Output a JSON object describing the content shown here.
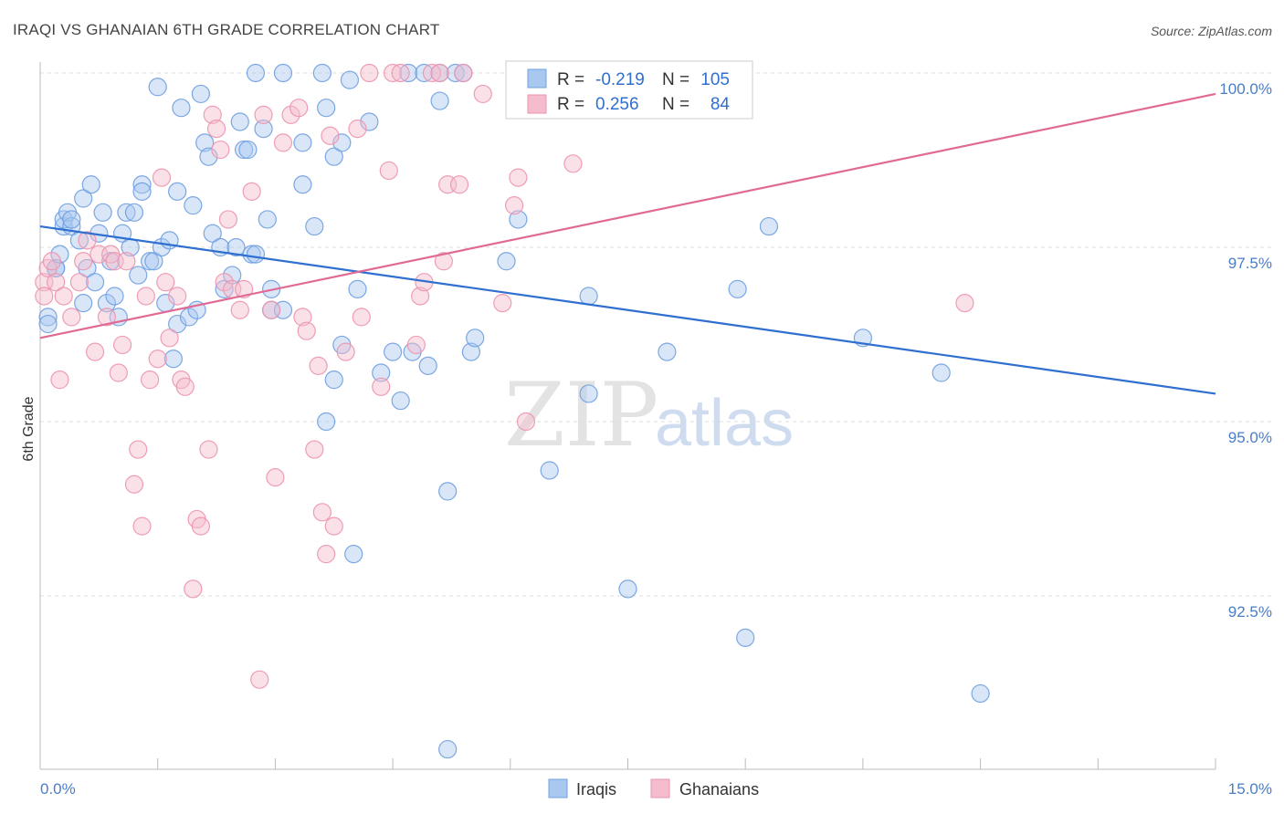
{
  "chart_data": {
    "type": "scatter",
    "title": "IRAQI VS GHANAIAN 6TH GRADE CORRELATION CHART",
    "source": "Source: ZipAtlas.com",
    "ylabel": "6th Grade",
    "xlabel": "",
    "xlim": [
      0,
      15
    ],
    "ylim": [
      90.3,
      100.2
    ],
    "x_tick_labels": [
      "0.0%",
      "15.0%"
    ],
    "y_ticks": [
      {
        "value": 100.0,
        "label": "100.0%"
      },
      {
        "value": 97.5,
        "label": "97.5%"
      },
      {
        "value": 95.0,
        "label": "95.0%"
      },
      {
        "value": 92.5,
        "label": "92.5%"
      }
    ],
    "grid": "horizontal dashed",
    "legend_position": "top-center",
    "legend": [
      {
        "r_label": "R =",
        "r_value": "-0.219",
        "n_label": "N =",
        "n_value": "105"
      },
      {
        "r_label": "R =",
        "r_value": "0.256",
        "n_label": "N =",
        "n_value": "84"
      }
    ],
    "series": [
      {
        "name": "Iraqis",
        "color": "#a9c8f0",
        "stroke": "#6f9fe0",
        "trend_color": "#2f6fcf",
        "trend": {
          "x": [
            0,
            15
          ],
          "y": [
            97.8,
            95.4
          ]
        },
        "points": [
          [
            0.1,
            96.5
          ],
          [
            0.1,
            96.4
          ],
          [
            0.2,
            97.2
          ],
          [
            0.2,
            97.2
          ],
          [
            0.25,
            97.4
          ],
          [
            0.3,
            97.8
          ],
          [
            0.3,
            97.9
          ],
          [
            0.35,
            98.0
          ],
          [
            0.4,
            97.8
          ],
          [
            0.4,
            97.9
          ],
          [
            0.5,
            97.6
          ],
          [
            0.55,
            98.2
          ],
          [
            0.55,
            96.7
          ],
          [
            0.6,
            97.2
          ],
          [
            0.65,
            98.4
          ],
          [
            0.7,
            97.0
          ],
          [
            0.75,
            97.7
          ],
          [
            0.8,
            98.0
          ],
          [
            0.85,
            96.7
          ],
          [
            0.9,
            97.3
          ],
          [
            0.95,
            96.8
          ],
          [
            1.0,
            96.5
          ],
          [
            1.05,
            97.7
          ],
          [
            1.1,
            98.0
          ],
          [
            1.15,
            97.5
          ],
          [
            1.2,
            98.0
          ],
          [
            1.25,
            97.1
          ],
          [
            1.3,
            98.4
          ],
          [
            1.3,
            98.3
          ],
          [
            1.4,
            97.3
          ],
          [
            1.45,
            97.3
          ],
          [
            1.5,
            99.8
          ],
          [
            1.55,
            97.5
          ],
          [
            1.6,
            96.7
          ],
          [
            1.65,
            97.6
          ],
          [
            1.7,
            95.9
          ],
          [
            1.75,
            98.3
          ],
          [
            1.75,
            96.4
          ],
          [
            1.8,
            99.5
          ],
          [
            1.9,
            96.5
          ],
          [
            1.95,
            98.1
          ],
          [
            2.0,
            96.6
          ],
          [
            2.05,
            99.7
          ],
          [
            2.1,
            99.0
          ],
          [
            2.15,
            98.8
          ],
          [
            2.2,
            97.7
          ],
          [
            2.3,
            97.5
          ],
          [
            2.35,
            96.9
          ],
          [
            2.45,
            97.1
          ],
          [
            2.5,
            97.5
          ],
          [
            2.55,
            99.3
          ],
          [
            2.6,
            98.9
          ],
          [
            2.65,
            98.9
          ],
          [
            2.7,
            97.4
          ],
          [
            2.75,
            100.0
          ],
          [
            2.75,
            97.4
          ],
          [
            2.85,
            99.2
          ],
          [
            2.9,
            97.9
          ],
          [
            2.95,
            96.9
          ],
          [
            2.95,
            96.6
          ],
          [
            3.1,
            96.6
          ],
          [
            3.1,
            100.0
          ],
          [
            3.35,
            98.4
          ],
          [
            3.35,
            99.0
          ],
          [
            3.5,
            97.8
          ],
          [
            3.6,
            100.0
          ],
          [
            3.65,
            99.5
          ],
          [
            3.75,
            98.8
          ],
          [
            3.85,
            99.0
          ],
          [
            3.95,
            99.9
          ],
          [
            3.65,
            95.0
          ],
          [
            3.75,
            95.6
          ],
          [
            3.85,
            96.1
          ],
          [
            4.0,
            93.1
          ],
          [
            4.05,
            96.9
          ],
          [
            4.2,
            99.3
          ],
          [
            4.35,
            95.7
          ],
          [
            4.5,
            96.0
          ],
          [
            4.6,
            95.3
          ],
          [
            4.7,
            100.0
          ],
          [
            4.75,
            96.0
          ],
          [
            4.9,
            100.0
          ],
          [
            4.95,
            95.8
          ],
          [
            5.1,
            100.0
          ],
          [
            5.1,
            99.6
          ],
          [
            5.2,
            94.0
          ],
          [
            5.3,
            100.0
          ],
          [
            5.4,
            100.0
          ],
          [
            5.5,
            96.0
          ],
          [
            5.55,
            96.2
          ],
          [
            5.95,
            97.3
          ],
          [
            6.1,
            97.9
          ],
          [
            6.2,
            100.0
          ],
          [
            6.5,
            94.3
          ],
          [
            7.0,
            95.4
          ],
          [
            7.0,
            96.8
          ],
          [
            7.5,
            92.6
          ],
          [
            8.0,
            96.0
          ],
          [
            8.9,
            96.9
          ],
          [
            9.0,
            91.9
          ],
          [
            9.3,
            97.8
          ],
          [
            10.5,
            96.2
          ],
          [
            11.5,
            95.7
          ],
          [
            12.0,
            91.1
          ],
          [
            5.2,
            90.3
          ]
        ]
      },
      {
        "name": "Ghanaians",
        "color": "#f5bccd",
        "stroke": "#ec93ad",
        "trend_color": "#e06a94",
        "trend": {
          "x": [
            0,
            15
          ],
          "y": [
            96.2,
            99.7
          ]
        },
        "points": [
          [
            0.05,
            97.0
          ],
          [
            0.05,
            96.8
          ],
          [
            0.1,
            97.2
          ],
          [
            0.15,
            97.3
          ],
          [
            0.2,
            97.0
          ],
          [
            0.25,
            95.6
          ],
          [
            0.3,
            96.8
          ],
          [
            0.4,
            96.5
          ],
          [
            0.5,
            97.0
          ],
          [
            0.55,
            97.3
          ],
          [
            0.6,
            97.6
          ],
          [
            0.7,
            96.0
          ],
          [
            0.75,
            97.4
          ],
          [
            0.85,
            96.5
          ],
          [
            0.9,
            97.4
          ],
          [
            0.95,
            97.3
          ],
          [
            1.0,
            95.7
          ],
          [
            1.05,
            96.1
          ],
          [
            1.1,
            97.3
          ],
          [
            1.2,
            94.1
          ],
          [
            1.25,
            94.6
          ],
          [
            1.3,
            93.5
          ],
          [
            1.35,
            96.8
          ],
          [
            1.4,
            95.6
          ],
          [
            1.5,
            95.9
          ],
          [
            1.55,
            98.5
          ],
          [
            1.6,
            97.0
          ],
          [
            1.65,
            96.2
          ],
          [
            1.75,
            96.8
          ],
          [
            1.8,
            95.6
          ],
          [
            1.85,
            95.5
          ],
          [
            1.95,
            92.6
          ],
          [
            2.0,
            93.6
          ],
          [
            2.05,
            93.5
          ],
          [
            2.15,
            94.6
          ],
          [
            2.2,
            99.4
          ],
          [
            2.25,
            99.2
          ],
          [
            2.3,
            98.9
          ],
          [
            2.35,
            97.0
          ],
          [
            2.4,
            97.9
          ],
          [
            2.45,
            96.9
          ],
          [
            2.55,
            96.6
          ],
          [
            2.6,
            96.9
          ],
          [
            2.7,
            98.3
          ],
          [
            2.8,
            91.3
          ],
          [
            2.85,
            99.4
          ],
          [
            2.95,
            96.6
          ],
          [
            3.0,
            94.2
          ],
          [
            3.1,
            99.0
          ],
          [
            3.2,
            99.4
          ],
          [
            3.3,
            99.5
          ],
          [
            3.35,
            96.5
          ],
          [
            3.4,
            96.3
          ],
          [
            3.5,
            94.6
          ],
          [
            3.55,
            95.8
          ],
          [
            3.6,
            93.7
          ],
          [
            3.65,
            93.1
          ],
          [
            3.7,
            99.1
          ],
          [
            3.75,
            93.5
          ],
          [
            3.9,
            96.0
          ],
          [
            4.05,
            99.2
          ],
          [
            4.1,
            96.5
          ],
          [
            4.2,
            100.0
          ],
          [
            4.35,
            95.5
          ],
          [
            4.45,
            98.6
          ],
          [
            4.5,
            100.0
          ],
          [
            4.6,
            100.0
          ],
          [
            4.8,
            96.1
          ],
          [
            4.85,
            96.8
          ],
          [
            4.9,
            97.0
          ],
          [
            5.0,
            100.0
          ],
          [
            5.1,
            100.0
          ],
          [
            5.15,
            97.3
          ],
          [
            5.2,
            98.4
          ],
          [
            5.35,
            98.4
          ],
          [
            5.4,
            100.0
          ],
          [
            5.65,
            99.7
          ],
          [
            5.9,
            96.7
          ],
          [
            6.05,
            98.1
          ],
          [
            6.1,
            98.5
          ],
          [
            6.2,
            95.0
          ],
          [
            6.25,
            100.0
          ],
          [
            6.8,
            98.7
          ],
          [
            11.8,
            96.7
          ]
        ]
      }
    ]
  },
  "bottom_legend": {
    "items": [
      "Iraqis",
      "Ghanaians"
    ]
  },
  "watermark": {
    "part1": "ZIP",
    "part2": "atlas"
  }
}
